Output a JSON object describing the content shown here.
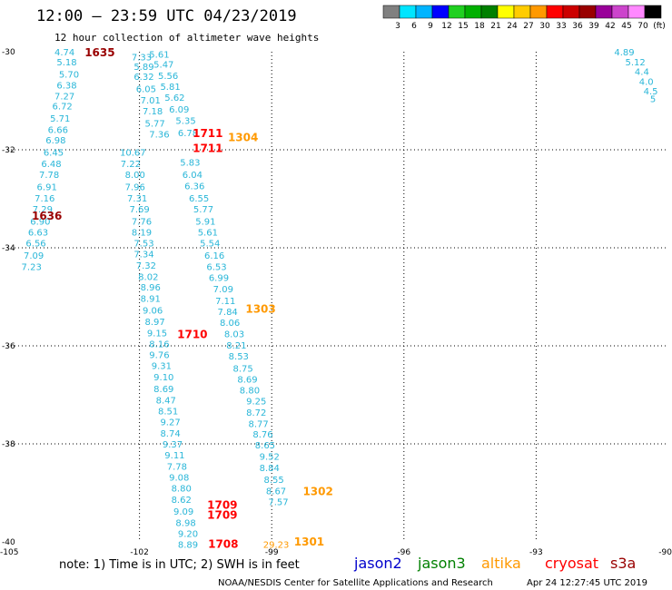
{
  "header": {
    "title": "12:00 — 23:59 UTC 04/23/2019",
    "subtitle": "12 hour collection of altimeter wave heights"
  },
  "colorbar": {
    "ticks": [
      "3",
      "6",
      "9",
      "12",
      "15",
      "18",
      "21",
      "24",
      "27",
      "30",
      "33",
      "36",
      "39",
      "42",
      "45",
      "70",
      "(ft)"
    ],
    "colors": [
      "#808080",
      "#00e5ff",
      "#00b4ff",
      "#0000ff",
      "#20d020",
      "#00b000",
      "#008000",
      "#ffff00",
      "#ffcc00",
      "#ff9900",
      "#ff0000",
      "#cc0000",
      "#990000",
      "#990099",
      "#cc44cc",
      "#ff88ff",
      "#000000"
    ]
  },
  "footer": {
    "note": "note:  1) Time is in UTC;  2) SWH is in feet",
    "credit": "NOAA/NESDIS Center for Satellite Applications and Research",
    "timestamp": "Apr 24 12:27:45 UTC 2019"
  },
  "legend": [
    {
      "name": "jason2",
      "color": "#0000cc"
    },
    {
      "name": "jason3",
      "color": "#008000"
    },
    {
      "name": "altika",
      "color": "#ff9900"
    },
    {
      "name": "cryosat",
      "color": "#ff0000"
    },
    {
      "name": "s3a",
      "color": "#990000"
    }
  ],
  "chart_data": {
    "type": "scatter",
    "title": "12:00 — 23:59 UTC 04/23/2019",
    "subtitle": "12 hour collection of altimeter wave heights",
    "xlim": [
      -105,
      -90
    ],
    "ylim": [
      -40,
      -30
    ],
    "grid": true,
    "x_ticks": [
      "-105",
      "-102",
      "-99",
      "-96",
      "-93",
      "-90"
    ],
    "y_ticks": [
      "-30",
      "-32",
      "-34",
      "-36",
      "-38",
      "-40"
    ],
    "x_tick_values": [
      -105,
      -102,
      -99,
      -96,
      -93,
      -90
    ],
    "y_tick_values": [
      -30,
      -32,
      -34,
      -36,
      -38,
      -40
    ],
    "series": [
      {
        "name": "s3a",
        "color": "#29b6d8",
        "points": [
          [
            -103.7,
            -30.0,
            "4.74"
          ],
          [
            -103.65,
            -30.2,
            "5.18"
          ],
          [
            -103.6,
            -30.45,
            "5.70"
          ],
          [
            -103.65,
            -30.68,
            "6.38"
          ],
          [
            -103.7,
            -30.9,
            "7.27"
          ],
          [
            -103.75,
            -31.1,
            "6.72"
          ],
          [
            -103.8,
            -31.35,
            "5.71"
          ],
          [
            -103.85,
            -31.58,
            "6.66"
          ],
          [
            -103.9,
            -31.8,
            "6.98"
          ],
          [
            -103.95,
            -32.05,
            "6.45"
          ],
          [
            -104.0,
            -32.28,
            "6.48"
          ],
          [
            -104.05,
            -32.5,
            "7.78"
          ],
          [
            -104.1,
            -32.75,
            "6.91"
          ],
          [
            -104.15,
            -32.98,
            "7.16"
          ],
          [
            -104.2,
            -33.2,
            "7.29"
          ],
          [
            -104.25,
            -33.45,
            "6.90"
          ],
          [
            -104.3,
            -33.68,
            "6.63"
          ],
          [
            -104.35,
            -33.9,
            "6.56"
          ],
          [
            -104.4,
            -34.15,
            "7.09"
          ],
          [
            -104.45,
            -34.38,
            "7.23"
          ]
        ]
      },
      {
        "name": "s3a-2",
        "color": "#29b6d8",
        "points": [
          [
            -91.0,
            -30.0,
            "4.89"
          ],
          [
            -90.75,
            -30.2,
            "5.12"
          ],
          [
            -90.6,
            -30.4,
            "4.4"
          ],
          [
            -90.5,
            -30.6,
            "4.0"
          ],
          [
            -90.4,
            -30.8,
            "4.5"
          ],
          [
            -90.35,
            -30.95,
            "5"
          ]
        ]
      },
      {
        "name": "cryosat",
        "color": "#29b6d8",
        "points": [
          [
            -101.95,
            -30.1,
            "7.33"
          ],
          [
            -101.9,
            -30.3,
            "5.89"
          ],
          [
            -101.9,
            -30.5,
            "6.32"
          ],
          [
            -101.85,
            -30.75,
            "6.05"
          ],
          [
            -101.75,
            -30.98,
            "7.01"
          ],
          [
            -101.7,
            -31.2,
            "7.18"
          ],
          [
            -101.65,
            -31.45,
            "5.77"
          ],
          [
            -101.55,
            -31.68,
            "7.36"
          ]
        ]
      },
      {
        "name": "cryosat-2",
        "color": "#29b6d8",
        "points": [
          [
            -101.55,
            -30.05,
            "5.61"
          ],
          [
            -101.45,
            -30.25,
            "5.47"
          ],
          [
            -101.35,
            -30.48,
            "5.56"
          ],
          [
            -101.3,
            -30.7,
            "5.81"
          ],
          [
            -101.2,
            -30.93,
            "5.62"
          ],
          [
            -101.1,
            -31.17,
            "6.09"
          ],
          [
            -100.95,
            -31.4,
            "5.35"
          ],
          [
            -100.9,
            -31.65,
            "6.78"
          ],
          [
            -100.85,
            -32.25,
            "5.83"
          ],
          [
            -100.8,
            -32.5,
            "6.04"
          ],
          [
            -100.75,
            -32.73,
            "6.36"
          ],
          [
            -100.65,
            -32.98,
            "6.55"
          ],
          [
            -100.55,
            -33.2,
            "5.77"
          ],
          [
            -100.5,
            -33.45,
            "5.91"
          ],
          [
            -100.45,
            -33.68,
            "5.61"
          ],
          [
            -100.4,
            -33.9,
            "5.54"
          ],
          [
            -100.3,
            -34.15,
            "6.16"
          ],
          [
            -100.25,
            -34.38,
            "6.53"
          ],
          [
            -100.2,
            -34.6,
            "6.99"
          ],
          [
            -100.1,
            -34.83,
            "7.09"
          ],
          [
            -100.05,
            -35.07,
            "7.11"
          ],
          [
            -100.0,
            -35.3,
            "7.84"
          ],
          [
            -99.95,
            -35.52,
            "8.06"
          ],
          [
            -99.85,
            -35.75,
            "8.03"
          ],
          [
            -99.8,
            -35.98,
            "8.21"
          ],
          [
            -99.75,
            -36.2,
            "8.53"
          ],
          [
            -99.65,
            -36.45,
            "8.75"
          ],
          [
            -99.55,
            -36.68,
            "8.69"
          ],
          [
            -99.5,
            -36.9,
            "8.80"
          ],
          [
            -99.35,
            -37.12,
            "9.25"
          ],
          [
            -99.35,
            -37.35,
            "8.72"
          ],
          [
            -99.3,
            -37.58,
            "8.77"
          ],
          [
            -99.2,
            -37.8,
            "8.76"
          ],
          [
            -99.15,
            -38.02,
            "8.65"
          ],
          [
            -99.05,
            -38.25,
            "9.52"
          ],
          [
            -99.05,
            -38.48,
            "8.84"
          ],
          [
            -98.95,
            -38.72,
            "8.55"
          ],
          [
            -98.9,
            -38.95,
            "8.67"
          ],
          [
            -98.85,
            -39.18,
            "7.57"
          ]
        ]
      },
      {
        "name": "jason3",
        "color": "#29b6d8",
        "points": [
          [
            -102.15,
            -32.05,
            "10.67"
          ],
          [
            -102.2,
            -32.28,
            "7.22"
          ],
          [
            -102.1,
            -32.5,
            "8.00"
          ],
          [
            -102.1,
            -32.75,
            "7.96"
          ],
          [
            -102.05,
            -32.98,
            "7.31"
          ],
          [
            -102.0,
            -33.2,
            "7.69"
          ],
          [
            -101.95,
            -33.45,
            "7.76"
          ],
          [
            -101.95,
            -33.68,
            "8.19"
          ],
          [
            -101.9,
            -33.9,
            "7.53"
          ],
          [
            -101.9,
            -34.12,
            "7.34"
          ],
          [
            -101.85,
            -34.35,
            "7.32"
          ],
          [
            -101.8,
            -34.58,
            "8.02"
          ],
          [
            -101.75,
            -34.8,
            "8.96"
          ],
          [
            -101.75,
            -35.03,
            "8.91"
          ],
          [
            -101.7,
            -35.27,
            "9.06"
          ],
          [
            -101.65,
            -35.5,
            "8.97"
          ],
          [
            -101.6,
            -35.73,
            "9.15"
          ],
          [
            -101.55,
            -35.95,
            "8.16"
          ],
          [
            -101.55,
            -36.18,
            "9.76"
          ],
          [
            -101.5,
            -36.4,
            "9.31"
          ],
          [
            -101.45,
            -36.63,
            "9.10"
          ],
          [
            -101.45,
            -36.87,
            "8.69"
          ],
          [
            -101.4,
            -37.1,
            "8.47"
          ],
          [
            -101.35,
            -37.32,
            "8.51"
          ],
          [
            -101.3,
            -37.55,
            "9.27"
          ],
          [
            -101.3,
            -37.78,
            "8.74"
          ],
          [
            -101.25,
            -38.0,
            "9.37"
          ],
          [
            -101.2,
            -38.22,
            "9.11"
          ],
          [
            -101.15,
            -38.45,
            "7.78"
          ],
          [
            -101.1,
            -38.68,
            "9.08"
          ],
          [
            -101.05,
            -38.9,
            "8.80"
          ],
          [
            -101.05,
            -39.13,
            "8.62"
          ],
          [
            -101.0,
            -39.37,
            "9.09"
          ],
          [
            -100.95,
            -39.6,
            "8.98"
          ],
          [
            -100.9,
            -39.82,
            "9.20"
          ],
          [
            -100.9,
            -40.05,
            "8.89"
          ]
        ]
      },
      {
        "name": "altika",
        "color": "#ff9900",
        "points": [
          [
            -98.9,
            -40.05,
            "29.23"
          ]
        ]
      }
    ],
    "time_labels": [
      {
        "x": -102.9,
        "y": -30.02,
        "text": "1635",
        "color": "#990000"
      },
      {
        "x": -104.1,
        "y": -33.35,
        "text": "1636",
        "color": "#990000"
      },
      {
        "x": -100.45,
        "y": -31.67,
        "text": "1711",
        "color": "#ff0000"
      },
      {
        "x": -100.45,
        "y": -31.97,
        "text": "1711",
        "color": "#ff0000"
      },
      {
        "x": -99.65,
        "y": -31.75,
        "text": "1304",
        "color": "#ff9900"
      },
      {
        "x": -100.8,
        "y": -35.77,
        "text": "1710",
        "color": "#ff0000"
      },
      {
        "x": -99.25,
        "y": -35.25,
        "text": "1303",
        "color": "#ff9900"
      },
      {
        "x": -100.12,
        "y": -39.25,
        "text": "1709",
        "color": "#ff0000"
      },
      {
        "x": -100.12,
        "y": -39.45,
        "text": "1709",
        "color": "#ff0000"
      },
      {
        "x": -97.95,
        "y": -38.97,
        "text": "1302",
        "color": "#ff9900"
      },
      {
        "x": -100.1,
        "y": -40.05,
        "text": "1708",
        "color": "#ff0000"
      },
      {
        "x": -98.15,
        "y": -40.0,
        "text": "1301",
        "color": "#ff9900"
      }
    ]
  }
}
